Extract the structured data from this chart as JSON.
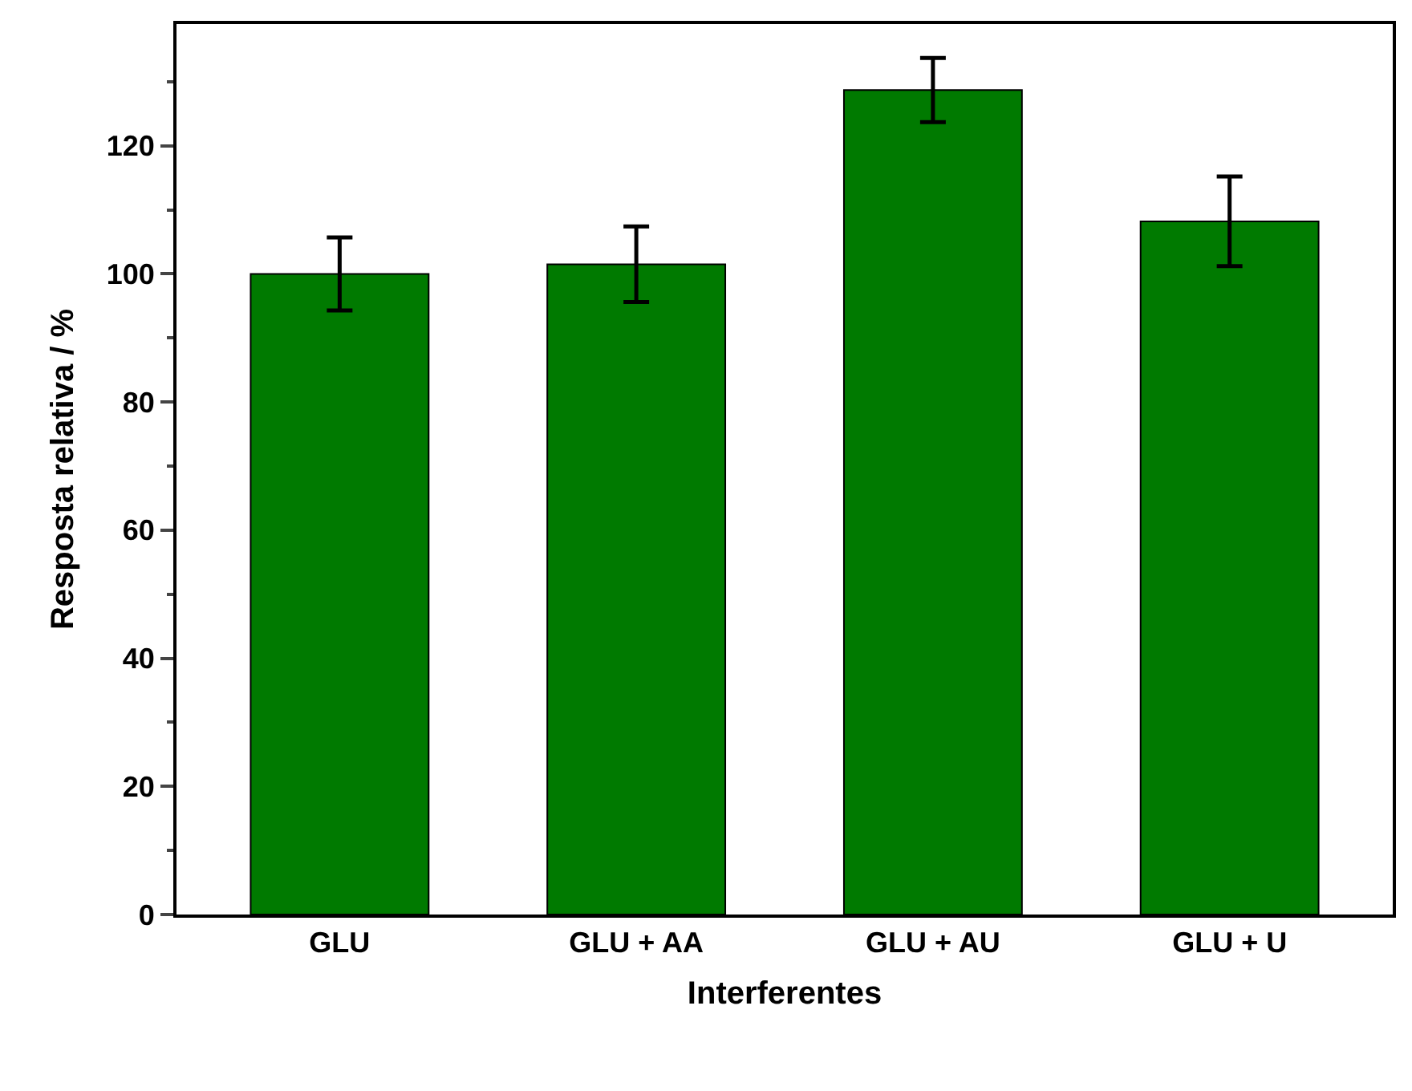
{
  "chart_data": {
    "type": "bar",
    "xlabel": "Interferentes",
    "ylabel": "Resposta relativa / %",
    "categories": [
      "GLU",
      "GLU + AA",
      "GLU + AU",
      "GLU + U"
    ],
    "values": [
      100,
      101.5,
      128.7,
      108.2
    ],
    "errors": [
      5.7,
      5.9,
      5,
      7
    ],
    "color": "#007a00",
    "ylim": [
      0,
      139
    ],
    "yticks": [
      0,
      20,
      40,
      60,
      80,
      100,
      120
    ]
  }
}
